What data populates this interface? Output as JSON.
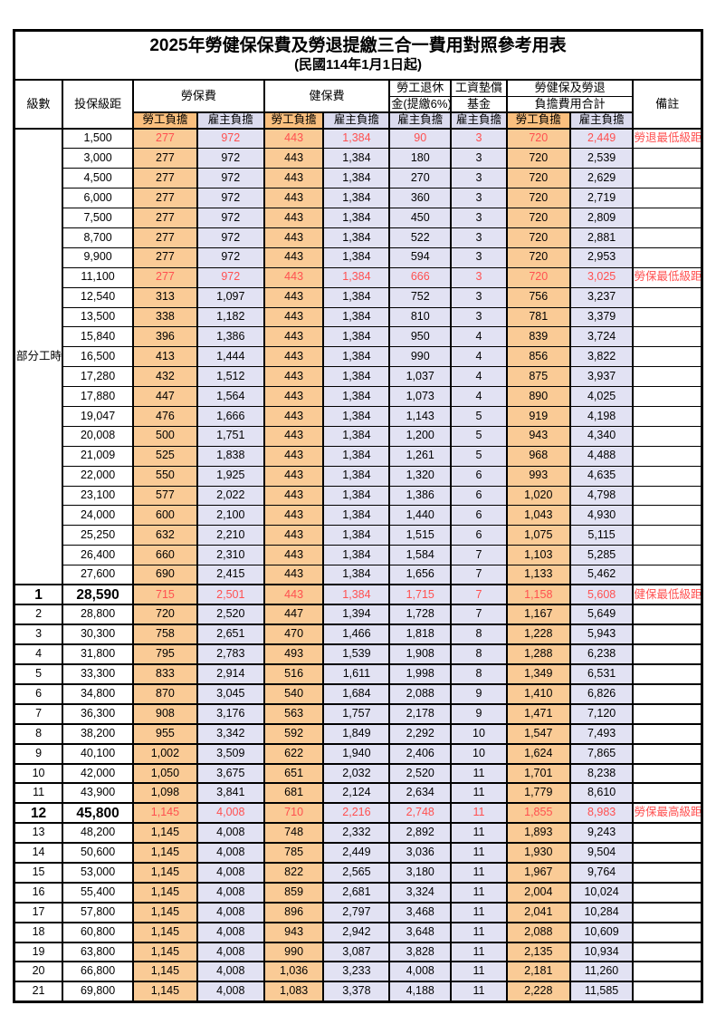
{
  "title": {
    "main": "2025年勞健保保費及勞退提繳三合一費用對照參考用表",
    "subtitle": "(民國114年1月1日起)"
  },
  "header": {
    "level": "級數",
    "bracket": "投保級距",
    "labor": "勞保費",
    "health": "健保費",
    "pension_line1": "勞工退休",
    "pension_line2": "金(提繳6%)",
    "wage_line1": "工資墊償",
    "wage_line2": "基金",
    "total_line1": "勞健保及勞退",
    "total_line2": "負擔費用合計",
    "note": "備註",
    "employee": "勞工負擔",
    "employer": "雇主負擔"
  },
  "part_time_label": "部分工時",
  "colors": {
    "employee_header": "#FABF7E",
    "employee_cell": "#FACB96",
    "employer_header": "#DBDBEE",
    "employer_cell": "#E2E2F3",
    "highlight_red": "#FF5050",
    "border": "#000000"
  },
  "notes_legend": {
    "pension_min": "勞退最低級距",
    "labor_min": "勞保最低級距",
    "health_min": "健保最低級距",
    "labor_max": "勞保最高級距"
  },
  "rows": [
    {
      "section": "part",
      "level": "",
      "bracket": "1,500",
      "cells": [
        "277",
        "972",
        "443",
        "1,384",
        "90",
        "3",
        "720",
        "2,449"
      ],
      "note": "勞退最低級距",
      "red": true,
      "big": false
    },
    {
      "section": "part",
      "level": "",
      "bracket": "3,000",
      "cells": [
        "277",
        "972",
        "443",
        "1,384",
        "180",
        "3",
        "720",
        "2,539"
      ],
      "note": "",
      "red": false,
      "big": false
    },
    {
      "section": "part",
      "level": "",
      "bracket": "4,500",
      "cells": [
        "277",
        "972",
        "443",
        "1,384",
        "270",
        "3",
        "720",
        "2,629"
      ],
      "note": "",
      "red": false,
      "big": false
    },
    {
      "section": "part",
      "level": "",
      "bracket": "6,000",
      "cells": [
        "277",
        "972",
        "443",
        "1,384",
        "360",
        "3",
        "720",
        "2,719"
      ],
      "note": "",
      "red": false,
      "big": false
    },
    {
      "section": "part",
      "level": "",
      "bracket": "7,500",
      "cells": [
        "277",
        "972",
        "443",
        "1,384",
        "450",
        "3",
        "720",
        "2,809"
      ],
      "note": "",
      "red": false,
      "big": false
    },
    {
      "section": "part",
      "level": "",
      "bracket": "8,700",
      "cells": [
        "277",
        "972",
        "443",
        "1,384",
        "522",
        "3",
        "720",
        "2,881"
      ],
      "note": "",
      "red": false,
      "big": false
    },
    {
      "section": "part",
      "level": "",
      "bracket": "9,900",
      "cells": [
        "277",
        "972",
        "443",
        "1,384",
        "594",
        "3",
        "720",
        "2,953"
      ],
      "note": "",
      "red": false,
      "big": false
    },
    {
      "section": "part",
      "level": "",
      "bracket": "11,100",
      "cells": [
        "277",
        "972",
        "443",
        "1,384",
        "666",
        "3",
        "720",
        "3,025"
      ],
      "note": "勞保最低級距",
      "red": true,
      "big": false
    },
    {
      "section": "part",
      "level": "",
      "bracket": "12,540",
      "cells": [
        "313",
        "1,097",
        "443",
        "1,384",
        "752",
        "3",
        "756",
        "3,237"
      ],
      "note": "",
      "red": false,
      "big": false
    },
    {
      "section": "part",
      "level": "",
      "bracket": "13,500",
      "cells": [
        "338",
        "1,182",
        "443",
        "1,384",
        "810",
        "3",
        "781",
        "3,379"
      ],
      "note": "",
      "red": false,
      "big": false
    },
    {
      "section": "part",
      "level": "",
      "bracket": "15,840",
      "cells": [
        "396",
        "1,386",
        "443",
        "1,384",
        "950",
        "4",
        "839",
        "3,724"
      ],
      "note": "",
      "red": false,
      "big": false
    },
    {
      "section": "part",
      "level": "",
      "bracket": "16,500",
      "cells": [
        "413",
        "1,444",
        "443",
        "1,384",
        "990",
        "4",
        "856",
        "3,822"
      ],
      "note": "",
      "red": false,
      "big": false
    },
    {
      "section": "part",
      "level": "",
      "bracket": "17,280",
      "cells": [
        "432",
        "1,512",
        "443",
        "1,384",
        "1,037",
        "4",
        "875",
        "3,937"
      ],
      "note": "",
      "red": false,
      "big": false
    },
    {
      "section": "part",
      "level": "",
      "bracket": "17,880",
      "cells": [
        "447",
        "1,564",
        "443",
        "1,384",
        "1,073",
        "4",
        "890",
        "4,025"
      ],
      "note": "",
      "red": false,
      "big": false
    },
    {
      "section": "part",
      "level": "",
      "bracket": "19,047",
      "cells": [
        "476",
        "1,666",
        "443",
        "1,384",
        "1,143",
        "5",
        "919",
        "4,198"
      ],
      "note": "",
      "red": false,
      "big": false
    },
    {
      "section": "part",
      "level": "",
      "bracket": "20,008",
      "cells": [
        "500",
        "1,751",
        "443",
        "1,384",
        "1,200",
        "5",
        "943",
        "4,340"
      ],
      "note": "",
      "red": false,
      "big": false
    },
    {
      "section": "part",
      "level": "",
      "bracket": "21,009",
      "cells": [
        "525",
        "1,838",
        "443",
        "1,384",
        "1,261",
        "5",
        "968",
        "4,488"
      ],
      "note": "",
      "red": false,
      "big": false
    },
    {
      "section": "part",
      "level": "",
      "bracket": "22,000",
      "cells": [
        "550",
        "1,925",
        "443",
        "1,384",
        "1,320",
        "6",
        "993",
        "4,635"
      ],
      "note": "",
      "red": false,
      "big": false
    },
    {
      "section": "part",
      "level": "",
      "bracket": "23,100",
      "cells": [
        "577",
        "2,022",
        "443",
        "1,384",
        "1,386",
        "6",
        "1,020",
        "4,798"
      ],
      "note": "",
      "red": false,
      "big": false
    },
    {
      "section": "part",
      "level": "",
      "bracket": "24,000",
      "cells": [
        "600",
        "2,100",
        "443",
        "1,384",
        "1,440",
        "6",
        "1,043",
        "4,930"
      ],
      "note": "",
      "red": false,
      "big": false
    },
    {
      "section": "part",
      "level": "",
      "bracket": "25,250",
      "cells": [
        "632",
        "2,210",
        "443",
        "1,384",
        "1,515",
        "6",
        "1,075",
        "5,115"
      ],
      "note": "",
      "red": false,
      "big": false
    },
    {
      "section": "part",
      "level": "",
      "bracket": "26,400",
      "cells": [
        "660",
        "2,310",
        "443",
        "1,384",
        "1,584",
        "7",
        "1,103",
        "5,285"
      ],
      "note": "",
      "red": false,
      "big": false
    },
    {
      "section": "part",
      "level": "",
      "bracket": "27,600",
      "cells": [
        "690",
        "2,415",
        "443",
        "1,384",
        "1,656",
        "7",
        "1,133",
        "5,462"
      ],
      "note": "",
      "red": false,
      "big": false
    },
    {
      "section": "num",
      "level": "1",
      "bracket": "28,590",
      "cells": [
        "715",
        "2,501",
        "443",
        "1,384",
        "1,715",
        "7",
        "1,158",
        "5,608"
      ],
      "note": "健保最低級距",
      "red": true,
      "big": true
    },
    {
      "section": "num",
      "level": "2",
      "bracket": "28,800",
      "cells": [
        "720",
        "2,520",
        "447",
        "1,394",
        "1,728",
        "7",
        "1,167",
        "5,649"
      ],
      "note": "",
      "red": false,
      "big": false
    },
    {
      "section": "num",
      "level": "3",
      "bracket": "30,300",
      "cells": [
        "758",
        "2,651",
        "470",
        "1,466",
        "1,818",
        "8",
        "1,228",
        "5,943"
      ],
      "note": "",
      "red": false,
      "big": false
    },
    {
      "section": "num",
      "level": "4",
      "bracket": "31,800",
      "cells": [
        "795",
        "2,783",
        "493",
        "1,539",
        "1,908",
        "8",
        "1,288",
        "6,238"
      ],
      "note": "",
      "red": false,
      "big": false
    },
    {
      "section": "num",
      "level": "5",
      "bracket": "33,300",
      "cells": [
        "833",
        "2,914",
        "516",
        "1,611",
        "1,998",
        "8",
        "1,349",
        "6,531"
      ],
      "note": "",
      "red": false,
      "big": false
    },
    {
      "section": "num",
      "level": "6",
      "bracket": "34,800",
      "cells": [
        "870",
        "3,045",
        "540",
        "1,684",
        "2,088",
        "9",
        "1,410",
        "6,826"
      ],
      "note": "",
      "red": false,
      "big": false
    },
    {
      "section": "num",
      "level": "7",
      "bracket": "36,300",
      "cells": [
        "908",
        "3,176",
        "563",
        "1,757",
        "2,178",
        "9",
        "1,471",
        "7,120"
      ],
      "note": "",
      "red": false,
      "big": false
    },
    {
      "section": "num",
      "level": "8",
      "bracket": "38,200",
      "cells": [
        "955",
        "3,342",
        "592",
        "1,849",
        "2,292",
        "10",
        "1,547",
        "7,493"
      ],
      "note": "",
      "red": false,
      "big": false
    },
    {
      "section": "num",
      "level": "9",
      "bracket": "40,100",
      "cells": [
        "1,002",
        "3,509",
        "622",
        "1,940",
        "2,406",
        "10",
        "1,624",
        "7,865"
      ],
      "note": "",
      "red": false,
      "big": false
    },
    {
      "section": "num",
      "level": "10",
      "bracket": "42,000",
      "cells": [
        "1,050",
        "3,675",
        "651",
        "2,032",
        "2,520",
        "11",
        "1,701",
        "8,238"
      ],
      "note": "",
      "red": false,
      "big": false
    },
    {
      "section": "num",
      "level": "11",
      "bracket": "43,900",
      "cells": [
        "1,098",
        "3,841",
        "681",
        "2,124",
        "2,634",
        "11",
        "1,779",
        "8,610"
      ],
      "note": "",
      "red": false,
      "big": false
    },
    {
      "section": "num",
      "level": "12",
      "bracket": "45,800",
      "cells": [
        "1,145",
        "4,008",
        "710",
        "2,216",
        "2,748",
        "11",
        "1,855",
        "8,983"
      ],
      "note": "勞保最高級距",
      "red": true,
      "big": true
    },
    {
      "section": "num",
      "level": "13",
      "bracket": "48,200",
      "cells": [
        "1,145",
        "4,008",
        "748",
        "2,332",
        "2,892",
        "11",
        "1,893",
        "9,243"
      ],
      "note": "",
      "red": false,
      "big": false
    },
    {
      "section": "num",
      "level": "14",
      "bracket": "50,600",
      "cells": [
        "1,145",
        "4,008",
        "785",
        "2,449",
        "3,036",
        "11",
        "1,930",
        "9,504"
      ],
      "note": "",
      "red": false,
      "big": false
    },
    {
      "section": "num",
      "level": "15",
      "bracket": "53,000",
      "cells": [
        "1,145",
        "4,008",
        "822",
        "2,565",
        "3,180",
        "11",
        "1,967",
        "9,764"
      ],
      "note": "",
      "red": false,
      "big": false
    },
    {
      "section": "num",
      "level": "16",
      "bracket": "55,400",
      "cells": [
        "1,145",
        "4,008",
        "859",
        "2,681",
        "3,324",
        "11",
        "2,004",
        "10,024"
      ],
      "note": "",
      "red": false,
      "big": false
    },
    {
      "section": "num",
      "level": "17",
      "bracket": "57,800",
      "cells": [
        "1,145",
        "4,008",
        "896",
        "2,797",
        "3,468",
        "11",
        "2,041",
        "10,284"
      ],
      "note": "",
      "red": false,
      "big": false
    },
    {
      "section": "num",
      "level": "18",
      "bracket": "60,800",
      "cells": [
        "1,145",
        "4,008",
        "943",
        "2,942",
        "3,648",
        "11",
        "2,088",
        "10,609"
      ],
      "note": "",
      "red": false,
      "big": false
    },
    {
      "section": "num",
      "level": "19",
      "bracket": "63,800",
      "cells": [
        "1,145",
        "4,008",
        "990",
        "3,087",
        "3,828",
        "11",
        "2,135",
        "10,934"
      ],
      "note": "",
      "red": false,
      "big": false
    },
    {
      "section": "num",
      "level": "20",
      "bracket": "66,800",
      "cells": [
        "1,145",
        "4,008",
        "1,036",
        "3,233",
        "4,008",
        "11",
        "2,181",
        "11,260"
      ],
      "note": "",
      "red": false,
      "big": false
    },
    {
      "section": "num",
      "level": "21",
      "bracket": "69,800",
      "cells": [
        "1,145",
        "4,008",
        "1,083",
        "3,378",
        "4,188",
        "11",
        "2,228",
        "11,585"
      ],
      "note": "",
      "red": false,
      "big": false
    }
  ]
}
